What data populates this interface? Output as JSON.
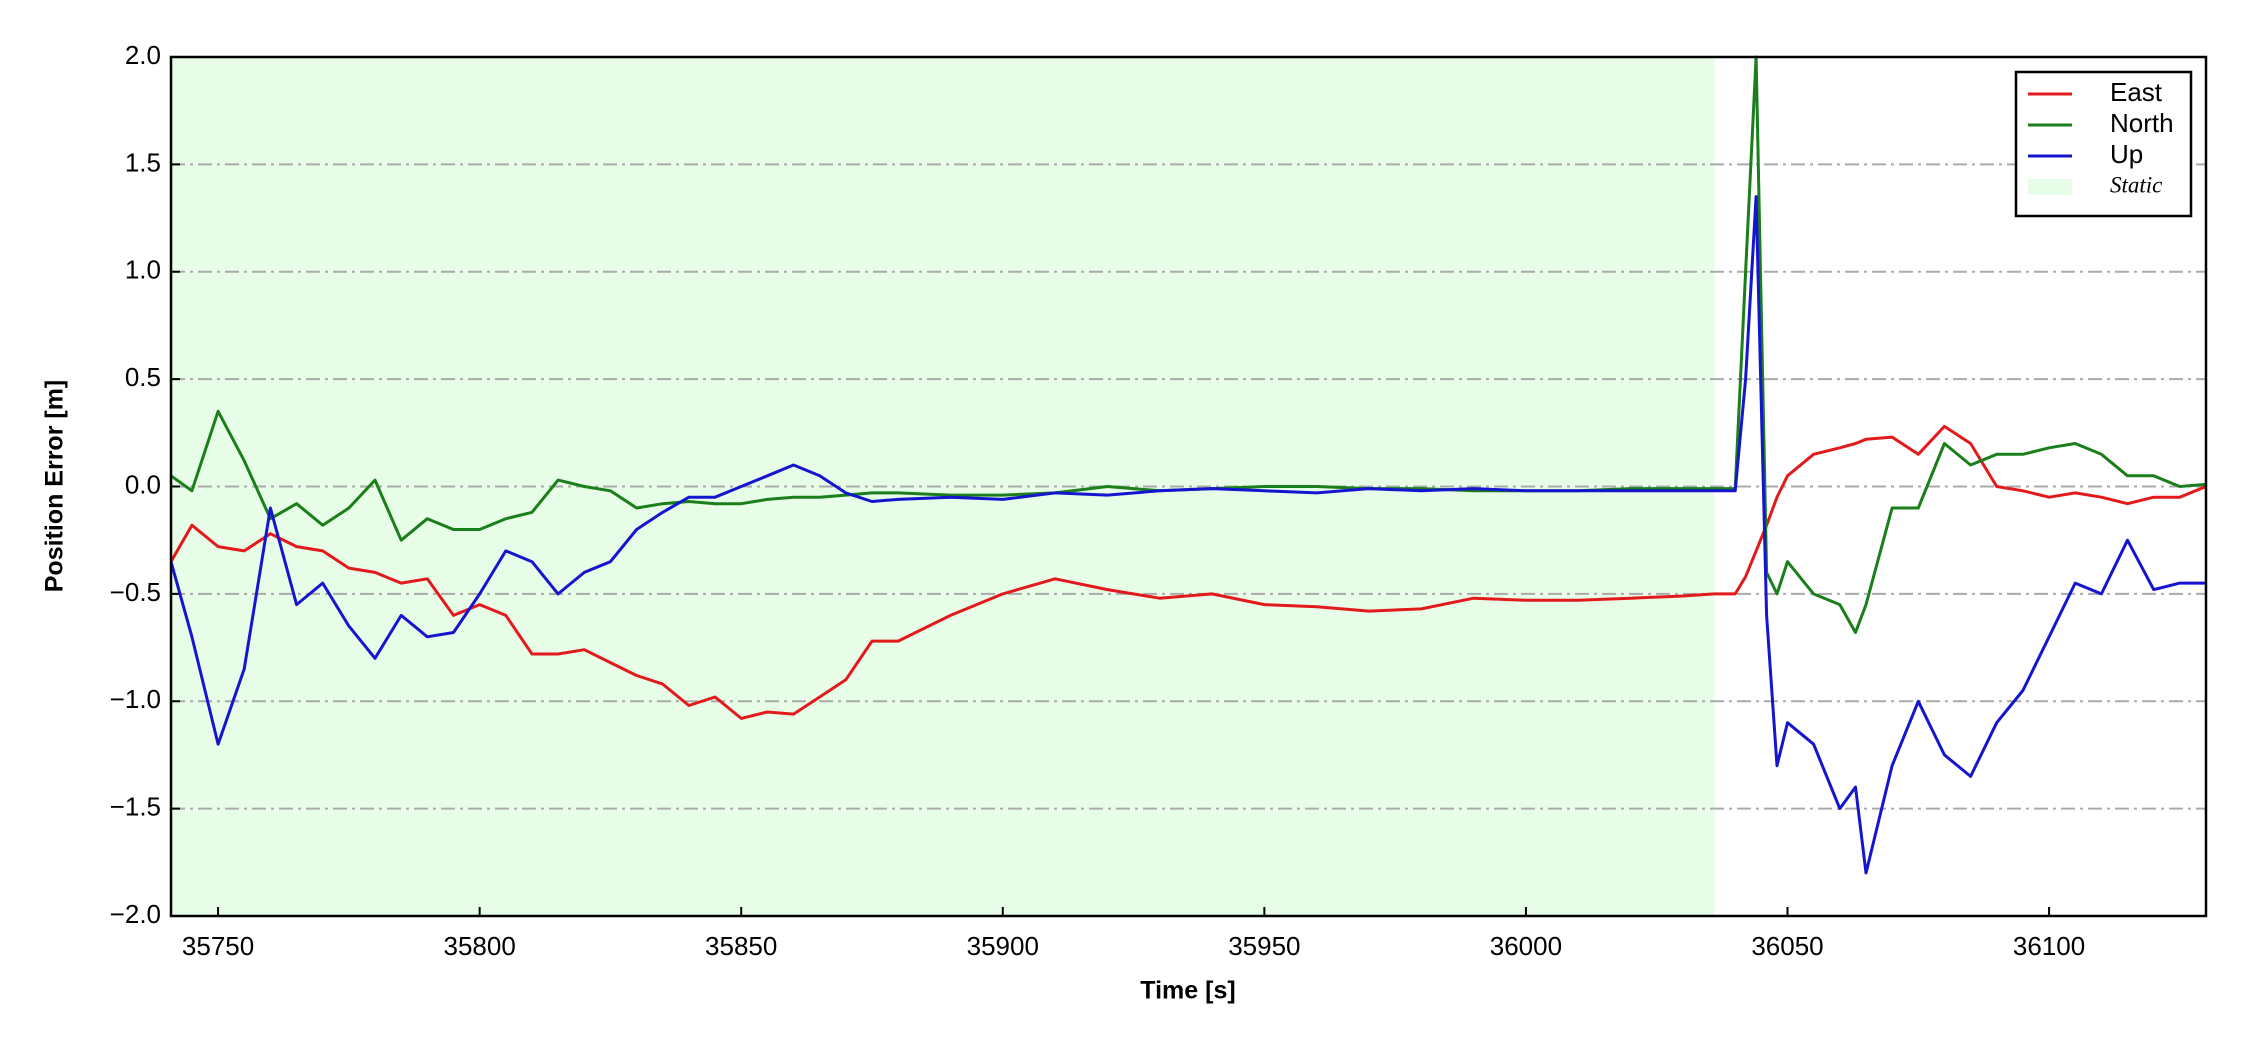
{
  "chart_data": {
    "type": "line",
    "xlabel": "Time [s]",
    "ylabel": "Position Error [m]",
    "xlim": [
      35741,
      36130
    ],
    "ylim": [
      -2,
      2
    ],
    "xticks": [
      35750,
      35800,
      35850,
      35900,
      35950,
      36000,
      36050,
      36100
    ],
    "yticks": [
      {
        "value": -2,
        "label": "−2.0"
      },
      {
        "value": -1.5,
        "label": "−1.5"
      },
      {
        "value": -1,
        "label": "−1.0"
      },
      {
        "value": -0.5,
        "label": "−0.5"
      },
      {
        "value": 0,
        "label": "0.0"
      },
      {
        "value": 0.5,
        "label": "0.5"
      },
      {
        "value": 1,
        "label": "1.0"
      },
      {
        "value": 1.5,
        "label": "1.5"
      },
      {
        "value": 2,
        "label": "2.0"
      }
    ],
    "grid": true,
    "legend": "upper right",
    "span": {
      "name": "Static",
      "range": [
        35741,
        36036
      ],
      "color": "#e8fde8"
    },
    "x": [
      35741,
      35745,
      35750,
      35755,
      35760,
      35765,
      35770,
      35775,
      35780,
      35785,
      35790,
      35795,
      35800,
      35805,
      35810,
      35815,
      35820,
      35825,
      35830,
      35835,
      35840,
      35845,
      35850,
      35855,
      35860,
      35865,
      35870,
      35875,
      35880,
      35890,
      35900,
      35910,
      35920,
      35930,
      35940,
      35950,
      35960,
      35970,
      35980,
      35990,
      36000,
      36010,
      36020,
      36030,
      36036,
      36040,
      36042,
      36044,
      36046,
      36048,
      36050,
      36055,
      36060,
      36063,
      36065,
      36070,
      36075,
      36080,
      36085,
      36090,
      36095,
      36100,
      36105,
      36110,
      36115,
      36120,
      36125,
      36130
    ],
    "series": [
      {
        "name": "East",
        "color": "#e31a1c",
        "values": [
          -0.35,
          -0.18,
          -0.28,
          -0.3,
          -0.22,
          -0.28,
          -0.3,
          -0.38,
          -0.4,
          -0.45,
          -0.43,
          -0.6,
          -0.55,
          -0.6,
          -0.78,
          -0.78,
          -0.76,
          -0.82,
          -0.88,
          -0.92,
          -1.02,
          -0.98,
          -1.08,
          -1.05,
          -1.06,
          -0.98,
          -0.9,
          -0.72,
          -0.72,
          -0.6,
          -0.5,
          -0.43,
          -0.48,
          -0.52,
          -0.5,
          -0.55,
          -0.56,
          -0.58,
          -0.57,
          -0.52,
          -0.53,
          -0.53,
          -0.52,
          -0.51,
          -0.5,
          -0.5,
          -0.42,
          -0.3,
          -0.18,
          -0.05,
          0.05,
          0.15,
          0.18,
          0.2,
          0.22,
          0.23,
          0.15,
          0.28,
          0.2,
          0.0,
          -0.02,
          -0.05,
          -0.03,
          -0.05,
          -0.08,
          -0.05,
          -0.05,
          0.0
        ]
      },
      {
        "name": "North",
        "color": "#1a7f1a",
        "values": [
          0.05,
          -0.02,
          0.35,
          0.12,
          -0.15,
          -0.08,
          -0.18,
          -0.1,
          0.03,
          -0.25,
          -0.15,
          -0.2,
          -0.2,
          -0.15,
          -0.12,
          0.03,
          0.0,
          -0.02,
          -0.1,
          -0.08,
          -0.07,
          -0.08,
          -0.08,
          -0.06,
          -0.05,
          -0.05,
          -0.04,
          -0.03,
          -0.03,
          -0.04,
          -0.04,
          -0.03,
          0.0,
          -0.02,
          -0.01,
          0.0,
          0.0,
          -0.01,
          -0.01,
          -0.02,
          -0.02,
          -0.02,
          -0.01,
          -0.01,
          -0.01,
          -0.01,
          1.0,
          2.0,
          -0.4,
          -0.5,
          -0.35,
          -0.5,
          -0.55,
          -0.68,
          -0.55,
          -0.1,
          -0.1,
          0.2,
          0.1,
          0.15,
          0.15,
          0.18,
          0.2,
          0.15,
          0.05,
          0.05,
          0.0,
          0.01
        ]
      },
      {
        "name": "Up",
        "color": "#1515d0",
        "values": [
          -0.35,
          -0.7,
          -1.2,
          -0.85,
          -0.1,
          -0.55,
          -0.45,
          -0.65,
          -0.8,
          -0.6,
          -0.7,
          -0.68,
          -0.5,
          -0.3,
          -0.35,
          -0.5,
          -0.4,
          -0.35,
          -0.2,
          -0.12,
          -0.05,
          -0.05,
          0.0,
          0.05,
          0.1,
          0.05,
          -0.03,
          -0.07,
          -0.06,
          -0.05,
          -0.06,
          -0.03,
          -0.04,
          -0.02,
          -0.01,
          -0.02,
          -0.03,
          -0.01,
          -0.02,
          -0.01,
          -0.02,
          -0.02,
          -0.02,
          -0.02,
          -0.02,
          -0.02,
          0.5,
          1.35,
          -0.6,
          -1.3,
          -1.1,
          -1.2,
          -1.5,
          -1.4,
          -1.8,
          -1.3,
          -1.0,
          -1.25,
          -1.35,
          -1.1,
          -0.95,
          -0.7,
          -0.45,
          -0.5,
          -0.25,
          -0.48,
          -0.45,
          -0.45
        ]
      }
    ]
  }
}
